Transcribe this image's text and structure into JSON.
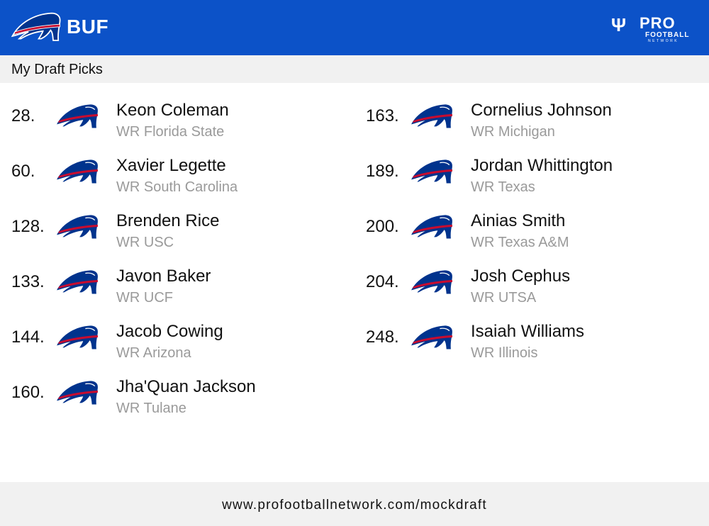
{
  "header": {
    "team_abbr": "BUF",
    "team_logo_icon": "bills-buffalo-logo-icon",
    "brand_logo_icon": "pfn-pro-football-network-logo-icon",
    "brand_logo_text": "PRO FOOTBALL NETWORK",
    "background_color": "#0c52c8"
  },
  "subheader": {
    "title": "My Draft Picks"
  },
  "picks": [
    {
      "number": "28.",
      "name": "Keon Coleman",
      "info": "WR Florida State"
    },
    {
      "number": "60.",
      "name": "Xavier Legette",
      "info": "WR South Carolina"
    },
    {
      "number": "128.",
      "name": "Brenden Rice",
      "info": "WR USC"
    },
    {
      "number": "133.",
      "name": "Javon Baker",
      "info": "WR UCF"
    },
    {
      "number": "144.",
      "name": "Jacob Cowing",
      "info": "WR Arizona"
    },
    {
      "number": "160.",
      "name": "Jha'Quan Jackson",
      "info": "WR Tulane"
    },
    {
      "number": "163.",
      "name": "Cornelius Johnson",
      "info": "WR Michigan"
    },
    {
      "number": "189.",
      "name": "Jordan Whittington",
      "info": "WR Texas"
    },
    {
      "number": "200.",
      "name": "Ainias Smith",
      "info": "WR Texas A&M"
    },
    {
      "number": "204.",
      "name": "Josh Cephus",
      "info": "WR UTSA"
    },
    {
      "number": "248.",
      "name": "Isaiah Williams",
      "info": "WR Illinois"
    }
  ],
  "footer": {
    "url": "www.profootballnetwork.com/mockdraft"
  },
  "colors": {
    "bills_blue": "#00338d",
    "bills_red": "#c60c30",
    "muted_text": "#9a9a9a"
  }
}
